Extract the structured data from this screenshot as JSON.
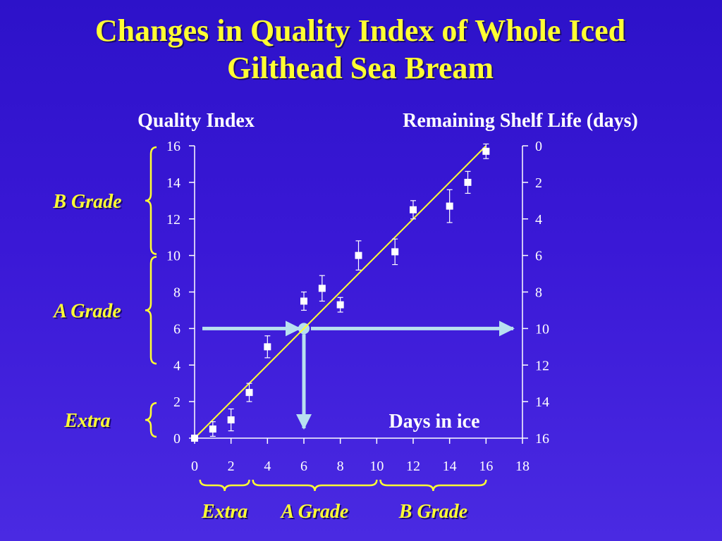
{
  "colors": {
    "background": "#3a18d6",
    "title": "#ffff33",
    "text": "#ffffff",
    "fit_line": "#ffff33",
    "arrow": "#b8e0f0",
    "marker": "#ffffff"
  },
  "chart_data": {
    "type": "scatter",
    "title": "Changes in Quality Index of Whole Iced Gilthead Sea Bream",
    "title_lines": [
      "Changes in Quality Index of Whole Iced",
      "Gilthead Sea Bream"
    ],
    "ylabel_left": "Quality Index",
    "ylabel_right": "Remaining Shelf Life (days)",
    "annotation": "Days in ice",
    "xlim": [
      0,
      18
    ],
    "ylim": [
      0,
      16
    ],
    "x_ticks": [
      "0",
      "2",
      "4",
      "6",
      "8",
      "10",
      "12",
      "14",
      "16",
      "18"
    ],
    "y_ticks_left": [
      "0",
      "2",
      "4",
      "6",
      "8",
      "10",
      "12",
      "14",
      "16"
    ],
    "y_ticks_right": [
      "16",
      "14",
      "12",
      "10",
      "8",
      "6",
      "4",
      "2",
      "0"
    ],
    "grid": false,
    "series": [
      {
        "points": [
          {
            "x": 0,
            "y": 0.0,
            "err": 0.0
          },
          {
            "x": 1,
            "y": 0.5,
            "err": 0.4
          },
          {
            "x": 2,
            "y": 1.0,
            "err": 0.6
          },
          {
            "x": 3,
            "y": 2.5,
            "err": 0.5
          },
          {
            "x": 4,
            "y": 5.0,
            "err": 0.6
          },
          {
            "x": 6,
            "y": 7.5,
            "err": 0.5
          },
          {
            "x": 7,
            "y": 8.2,
            "err": 0.7
          },
          {
            "x": 8,
            "y": 7.3,
            "err": 0.4
          },
          {
            "x": 9,
            "y": 10.0,
            "err": 0.8
          },
          {
            "x": 11,
            "y": 10.2,
            "err": 0.7
          },
          {
            "x": 12,
            "y": 12.5,
            "err": 0.5
          },
          {
            "x": 14,
            "y": 12.7,
            "err": 0.9
          },
          {
            "x": 15,
            "y": 14.0,
            "err": 0.6
          },
          {
            "x": 16,
            "y": 15.7,
            "err": 0.4
          }
        ]
      }
    ],
    "fit_line": {
      "x": [
        0,
        16
      ],
      "y": [
        0,
        16
      ]
    },
    "guide_point": {
      "x": 6,
      "y": 6
    },
    "y_grades": [
      {
        "label": "B Grade",
        "from": 10,
        "to": 16
      },
      {
        "label": "A Grade",
        "from": 4,
        "to": 10
      },
      {
        "label": "Extra",
        "from": 0,
        "to": 2
      }
    ],
    "x_grades": [
      {
        "label": "Extra",
        "from": 0.3,
        "to": 3.0
      },
      {
        "label": "A Grade",
        "from": 3.2,
        "to": 10.0
      },
      {
        "label": "B Grade",
        "from": 10.2,
        "to": 16.0
      }
    ]
  }
}
